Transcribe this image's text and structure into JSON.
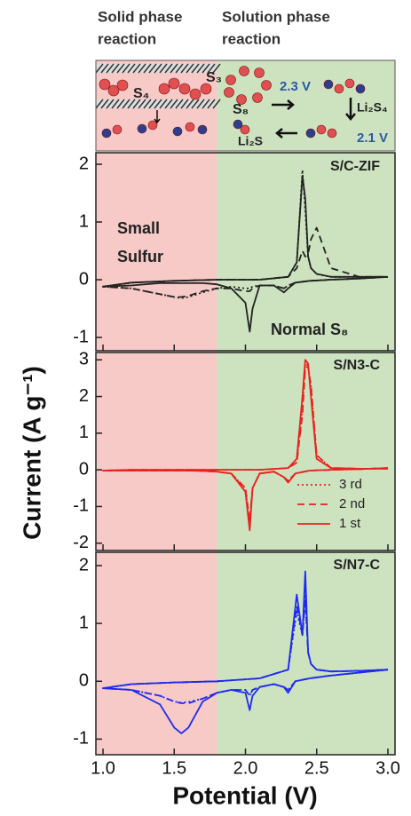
{
  "header": {
    "left_title": [
      "Solid phase",
      "reaction"
    ],
    "right_title": [
      "Solution phase",
      "reaction"
    ],
    "species": [
      "S₄",
      "S₃",
      "S₈",
      "Li₂S₄",
      "Li₂S"
    ],
    "potentials": [
      "2.3 V",
      "2.1 V"
    ]
  },
  "regions": [
    {
      "range": [
        0.95,
        1.8
      ],
      "color": "#f7c9c7"
    },
    {
      "range": [
        1.8,
        3.05
      ],
      "color": "#cde3c0"
    }
  ],
  "y_label": "Current (A g⁻¹)",
  "x_label": "Potential (V)",
  "chart_data": [
    {
      "type": "line",
      "annotations": [
        "S/C-ZIF",
        "Small",
        "Sulfur",
        "Normal S₈"
      ],
      "x": [
        3.0,
        2.8,
        2.6,
        2.45,
        2.35,
        2.3,
        2.27,
        2.2,
        2.1,
        2.05,
        2.03,
        2.0,
        1.9,
        1.8,
        1.7,
        1.6,
        1.55,
        1.5,
        1.4,
        1.2,
        1.0,
        1.2,
        1.5,
        1.8,
        2.1,
        2.3,
        2.36,
        2.4,
        2.42,
        2.44,
        2.46,
        2.5,
        2.6,
        2.8,
        3.0
      ],
      "series": [
        {
          "color": "#222222",
          "style": "dotted",
          "values": [
            0.05,
            0.02,
            0,
            -0.02,
            -0.05,
            -0.1,
            -0.15,
            -0.1,
            -0.1,
            -0.12,
            -0.15,
            -0.15,
            -0.12,
            -0.15,
            -0.22,
            -0.3,
            -0.32,
            -0.3,
            -0.25,
            -0.15,
            -0.12,
            -0.05,
            -0.02,
            0,
            0,
            0.05,
            0.3,
            1.9,
            1.2,
            0.4,
            0.2,
            0.1,
            0.05,
            0.05,
            0.05
          ]
        },
        {
          "color": "#222222",
          "style": "dashed",
          "values": [
            0.05,
            0.02,
            0,
            -0.02,
            -0.05,
            -0.1,
            -0.15,
            -0.1,
            -0.1,
            -0.15,
            -0.2,
            -0.2,
            -0.15,
            -0.15,
            -0.2,
            -0.28,
            -0.3,
            -0.3,
            -0.25,
            -0.15,
            -0.12,
            -0.05,
            -0.02,
            0,
            0,
            0.05,
            0.2,
            0.5,
            0.4,
            0.45,
            0.7,
            0.9,
            0.2,
            0.05,
            0.05
          ]
        },
        {
          "color": "#222222",
          "style": "solid",
          "values": [
            0.05,
            0.02,
            0,
            -0.02,
            -0.05,
            -0.15,
            -0.22,
            -0.1,
            -0.1,
            -0.5,
            -0.9,
            -0.4,
            -0.15,
            -0.08,
            -0.06,
            -0.06,
            -0.06,
            -0.06,
            -0.06,
            -0.1,
            -0.12,
            -0.05,
            -0.02,
            0,
            0,
            0.05,
            0.3,
            1.8,
            1.4,
            0.4,
            0.2,
            0.1,
            0.05,
            0.05,
            0.05
          ]
        }
      ],
      "xlim": [
        0.95,
        3.05
      ],
      "xticks": [
        1.0,
        1.5,
        2.0,
        2.5,
        3.0
      ],
      "ylim": [
        -1.23,
        2.2
      ],
      "yticks": [
        -1,
        0,
        1,
        2
      ]
    },
    {
      "type": "line",
      "annotations": [
        "S/N3-C"
      ],
      "legend": "lower right",
      "x": [
        3.0,
        2.8,
        2.6,
        2.45,
        2.35,
        2.3,
        2.27,
        2.2,
        2.1,
        2.05,
        2.03,
        2.0,
        1.9,
        1.8,
        1.7,
        1.6,
        1.55,
        1.5,
        1.4,
        1.2,
        1.0,
        1.2,
        1.5,
        1.8,
        2.1,
        2.3,
        2.36,
        2.4,
        2.42,
        2.44,
        2.46,
        2.5,
        2.6,
        2.8,
        3.0
      ],
      "series": [
        {
          "name": "3 rd",
          "color": "#e8231f",
          "style": "dotted",
          "values": [
            0.05,
            0.02,
            0,
            -0.02,
            -0.1,
            -0.3,
            -0.2,
            -0.05,
            -0.1,
            -0.5,
            -1.45,
            -0.5,
            -0.1,
            -0.05,
            -0.03,
            -0.02,
            -0.02,
            -0.02,
            -0.02,
            -0.02,
            -0.02,
            0,
            0,
            0,
            0,
            0.05,
            0.2,
            1.6,
            2.9,
            2.85,
            2.3,
            0.4,
            0.05,
            0.03,
            0.03
          ]
        },
        {
          "name": "2 nd",
          "color": "#e8231f",
          "style": "dashed",
          "values": [
            0.05,
            0.02,
            0,
            -0.02,
            -0.1,
            -0.3,
            -0.2,
            -0.05,
            -0.1,
            -0.5,
            -1.4,
            -0.5,
            -0.1,
            -0.05,
            -0.03,
            -0.02,
            -0.02,
            -0.02,
            -0.02,
            -0.02,
            -0.02,
            0,
            0,
            0,
            0,
            0.05,
            0.2,
            1.5,
            2.8,
            2.8,
            2.3,
            0.4,
            0.05,
            0.03,
            0.03
          ]
        },
        {
          "name": "1 st",
          "color": "#e8231f",
          "style": "solid",
          "values": [
            0.05,
            0.02,
            0,
            -0.02,
            -0.1,
            -0.35,
            -0.2,
            -0.05,
            -0.1,
            -0.5,
            -1.65,
            -0.6,
            -0.1,
            -0.05,
            -0.03,
            -0.02,
            -0.02,
            -0.02,
            -0.02,
            -0.02,
            -0.02,
            0,
            0,
            0,
            0,
            0.05,
            0.3,
            2.0,
            3.0,
            2.9,
            2.0,
            0.3,
            0.05,
            0.03,
            0.03
          ]
        }
      ],
      "xlim": [
        0.95,
        3.05
      ],
      "xticks": [
        1.0,
        1.5,
        2.0,
        2.5,
        3.0
      ],
      "ylim": [
        -2.2,
        3.2
      ],
      "yticks": [
        -2,
        -1,
        0,
        1,
        2,
        3
      ]
    },
    {
      "type": "line",
      "annotations": [
        "S/N7-C"
      ],
      "x": [
        3.0,
        2.8,
        2.6,
        2.45,
        2.35,
        2.3,
        2.27,
        2.2,
        2.1,
        2.05,
        2.03,
        2.0,
        1.9,
        1.8,
        1.7,
        1.6,
        1.55,
        1.5,
        1.4,
        1.2,
        1.0,
        1.2,
        1.5,
        1.8,
        2.1,
        2.3,
        2.36,
        2.4,
        2.42,
        2.44,
        2.46,
        2.5,
        2.6,
        2.8,
        3.0
      ],
      "series": [
        {
          "color": "#1f2bef",
          "style": "dotted",
          "values": [
            0.2,
            0.15,
            0.1,
            0.05,
            0,
            -0.15,
            -0.1,
            -0.05,
            -0.1,
            -0.15,
            -0.25,
            -0.15,
            -0.15,
            -0.2,
            -0.3,
            -0.36,
            -0.37,
            -0.35,
            -0.25,
            -0.15,
            -0.12,
            -0.05,
            -0.02,
            0,
            0.05,
            0.2,
            1.2,
            0.8,
            1.5,
            0.5,
            0.3,
            0.2,
            0.17,
            0.18,
            0.2
          ]
        },
        {
          "color": "#1f2bef",
          "style": "dashed",
          "values": [
            0.2,
            0.15,
            0.1,
            0.05,
            0,
            -0.15,
            -0.1,
            -0.05,
            -0.1,
            -0.15,
            -0.25,
            -0.15,
            -0.15,
            -0.2,
            -0.3,
            -0.38,
            -0.38,
            -0.35,
            -0.25,
            -0.15,
            -0.12,
            -0.05,
            -0.02,
            0,
            0.05,
            0.2,
            1.3,
            0.8,
            1.4,
            0.5,
            0.3,
            0.2,
            0.17,
            0.18,
            0.2
          ]
        },
        {
          "color": "#1f2bef",
          "style": "solid",
          "values": [
            0.2,
            0.15,
            0.1,
            0.05,
            0,
            -0.2,
            -0.1,
            -0.05,
            -0.1,
            -0.25,
            -0.5,
            -0.2,
            -0.15,
            -0.2,
            -0.35,
            -0.8,
            -0.9,
            -0.8,
            -0.4,
            -0.15,
            -0.12,
            -0.05,
            -0.02,
            0,
            0.05,
            0.2,
            1.5,
            0.8,
            1.9,
            0.5,
            0.3,
            0.2,
            0.17,
            0.18,
            0.2
          ]
        }
      ],
      "xlim": [
        0.95,
        3.05
      ],
      "xticks": [
        {
          "value": 1,
          "label": "1.0"
        },
        {
          "value": 1.5,
          "label": "1.5"
        },
        {
          "value": 2,
          "label": "2.0"
        },
        {
          "value": 2.5,
          "label": "2.5"
        },
        {
          "value": 3,
          "label": "3.0"
        }
      ],
      "ylim": [
        -1.27,
        2.23
      ],
      "yticks": [
        -1,
        0,
        1,
        2
      ]
    }
  ]
}
